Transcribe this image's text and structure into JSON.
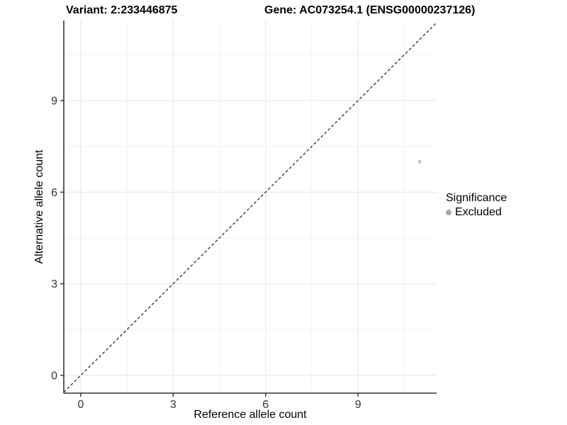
{
  "header": {
    "variant_title": "Variant: 2:233446875",
    "gene_title": "Gene: AC073254.1 (ENSG00000237126)"
  },
  "legend": {
    "title": "Significance",
    "items": [
      {
        "label": "Excluded",
        "color": "#a8a8a8"
      }
    ]
  },
  "colors": {
    "background": "#ffffff",
    "axis_line": "#333333",
    "tick_label": "#333333",
    "grid_major": "#e6e6e6",
    "grid_minor": "#f2f2f2",
    "reference_line": "#1a1a1a",
    "point": "#c4c4c4"
  },
  "chart_data": {
    "type": "scatter",
    "title": "Variant: 2:233446875   Gene: AC073254.1 (ENSG00000237126)",
    "xlabel": "Reference allele count",
    "ylabel": "Alternative allele count",
    "xlim": [
      -0.55,
      11.55
    ],
    "ylim": [
      -0.58,
      11.62
    ],
    "x_ticks": [
      0,
      3,
      6,
      9
    ],
    "y_ticks": [
      0,
      3,
      6,
      9
    ],
    "x_minor_ticks": [
      1.5,
      4.5,
      7.5,
      10.5
    ],
    "y_minor_ticks": [
      1.5,
      4.5,
      7.5,
      10.5
    ],
    "grid": true,
    "legend_position": "right",
    "series": [
      {
        "name": "Excluded",
        "color": "#c4c4c4",
        "points": [
          {
            "x": 11,
            "y": 7
          }
        ]
      }
    ],
    "reference_line": {
      "type": "identity",
      "equation": "y = x",
      "style": "dashed",
      "color": "#1a1a1a"
    }
  }
}
